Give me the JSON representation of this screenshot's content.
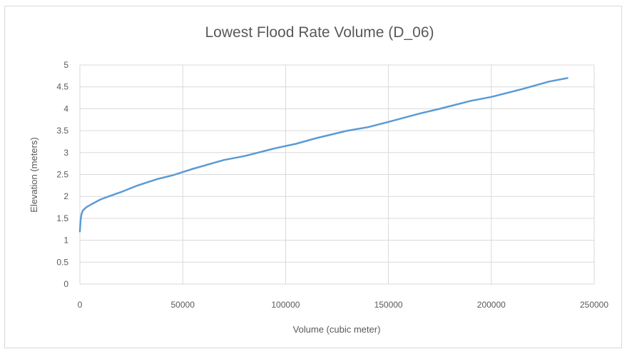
{
  "chart_data": {
    "type": "line",
    "title": "Lowest Flood Rate Volume (D_06)",
    "xlabel": "Volume (cubic meter)",
    "ylabel": "Elevation (meters)",
    "xlim": [
      0,
      250000
    ],
    "ylim": [
      0,
      5
    ],
    "xticks": [
      0,
      50000,
      100000,
      150000,
      200000,
      250000
    ],
    "yticks": [
      0,
      0.5,
      1,
      1.5,
      2,
      2.5,
      3,
      3.5,
      4,
      4.5,
      5
    ],
    "grid": true,
    "legend": "none",
    "series": [
      {
        "color": "#5b9bd5",
        "x": [
          0,
          300,
          800,
          1500,
          3000,
          6000,
          10000,
          14000,
          20000,
          28000,
          38000,
          45000,
          55000,
          70000,
          80000,
          95000,
          105000,
          115000,
          130000,
          140000,
          150000,
          165000,
          175000,
          190000,
          200000,
          215000,
          228000,
          237000
        ],
        "y": [
          1.2,
          1.45,
          1.6,
          1.68,
          1.75,
          1.83,
          1.93,
          2.0,
          2.1,
          2.25,
          2.4,
          2.48,
          2.63,
          2.83,
          2.92,
          3.1,
          3.2,
          3.33,
          3.5,
          3.58,
          3.7,
          3.89,
          4.0,
          4.18,
          4.27,
          4.45,
          4.62,
          4.7
        ]
      }
    ]
  }
}
